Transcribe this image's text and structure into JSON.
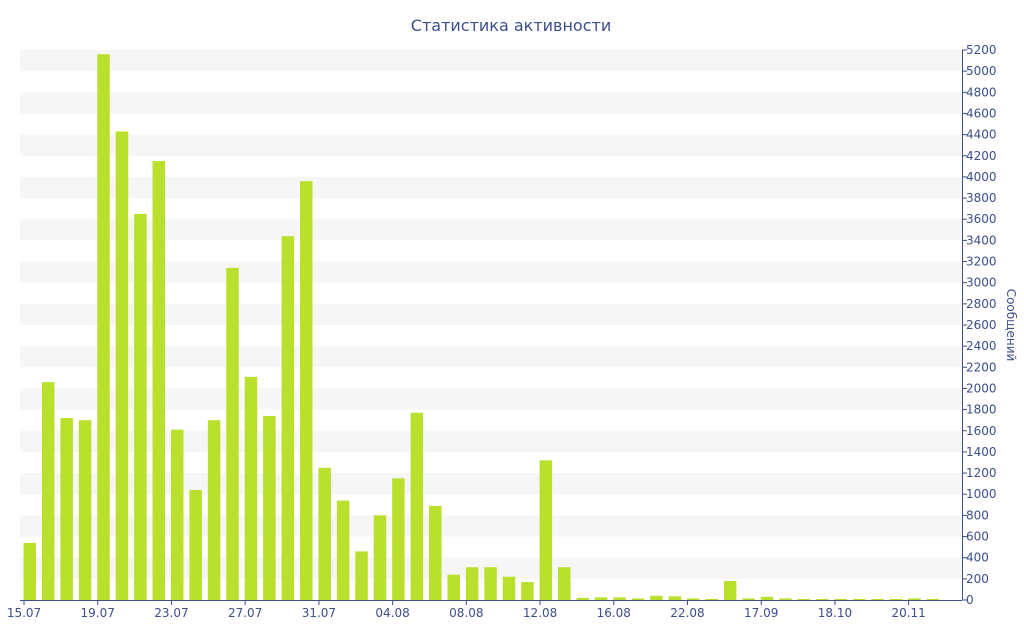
{
  "colors": {
    "bar": "#b8e02c",
    "band": "#f6f6f6",
    "axis": "#3d4e8a",
    "title": "#3d4e8a"
  },
  "chart_data": {
    "type": "bar",
    "title": "Статистика активности",
    "ylabel": "Сообщений",
    "xlabel": "",
    "y_axis_position": "right",
    "ylim": [
      0,
      5200
    ],
    "y_tick_step": 200,
    "y_ticks": [
      0,
      200,
      400,
      600,
      800,
      1000,
      1200,
      1400,
      1600,
      1800,
      2000,
      2200,
      2400,
      2600,
      2800,
      3000,
      3200,
      3400,
      3600,
      3800,
      4000,
      4200,
      4400,
      4600,
      4800,
      5000,
      5200
    ],
    "grid": "alternating horizontal bands",
    "legend": "none",
    "x_tick_labels": [
      {
        "index": 0,
        "label": "15.07"
      },
      {
        "index": 4,
        "label": "19.07"
      },
      {
        "index": 8,
        "label": "23.07"
      },
      {
        "index": 12,
        "label": "27.07"
      },
      {
        "index": 16,
        "label": "31.07"
      },
      {
        "index": 20,
        "label": "04.08"
      },
      {
        "index": 24,
        "label": "08.08"
      },
      {
        "index": 28,
        "label": "12.08"
      },
      {
        "index": 32,
        "label": "16.08"
      },
      {
        "index": 36,
        "label": "22.08"
      },
      {
        "index": 40,
        "label": "17.09"
      },
      {
        "index": 44,
        "label": "18.10"
      },
      {
        "index": 48,
        "label": "20.11"
      }
    ],
    "values": [
      540,
      2060,
      1720,
      1700,
      5160,
      4430,
      3650,
      4150,
      1610,
      1040,
      1700,
      3140,
      2110,
      1740,
      3440,
      3960,
      1250,
      940,
      460,
      800,
      1150,
      1770,
      890,
      240,
      310,
      310,
      220,
      170,
      1320,
      310,
      20,
      25,
      25,
      15,
      40,
      35,
      15,
      10,
      180,
      15,
      30,
      15,
      10,
      10,
      10,
      10,
      10,
      10,
      15,
      10
    ]
  }
}
